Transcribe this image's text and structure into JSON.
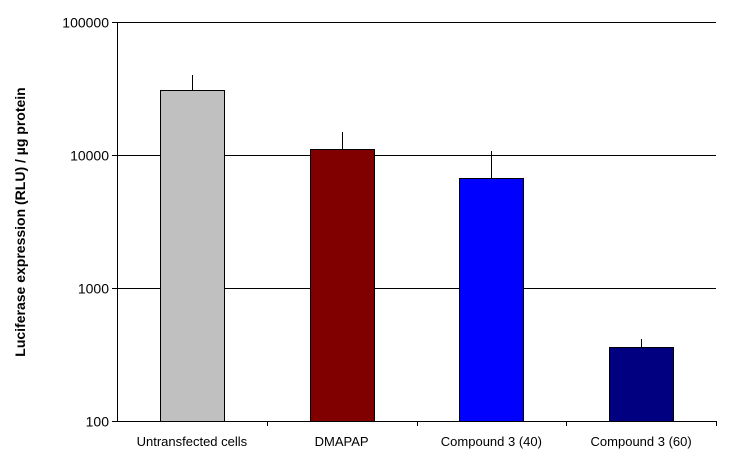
{
  "chart_data": {
    "type": "bar",
    "title": "",
    "xlabel": "",
    "ylabel": "Luciferase expression (RLU) / µg protein",
    "yscale": "log",
    "ylim": [
      100,
      100000
    ],
    "yticks": [
      100,
      1000,
      10000,
      100000
    ],
    "ytick_labels": [
      "100",
      "1000",
      "10000",
      "100000"
    ],
    "grid": true,
    "legend": "none",
    "categories": [
      "Untransfected cells",
      "DMAPAP",
      "Compound 3 (40)",
      "Compound 3 (60)"
    ],
    "values": [
      31000,
      11000,
      6700,
      360
    ],
    "error_upper": [
      40000,
      15000,
      10800,
      410
    ],
    "colors": [
      "#c0c0c0",
      "#800000",
      "#0000ff",
      "#000080"
    ]
  }
}
